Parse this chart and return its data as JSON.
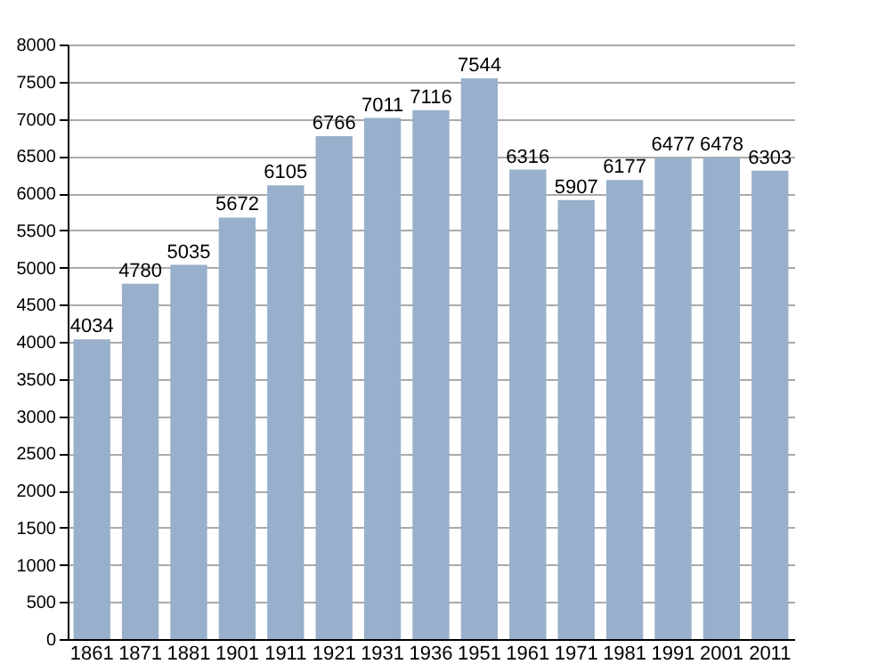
{
  "chart_data": {
    "type": "bar",
    "categories": [
      "1861",
      "1871",
      "1881",
      "1901",
      "1911",
      "1921",
      "1931",
      "1936",
      "1951",
      "1961",
      "1971",
      "1981",
      "1991",
      "2001",
      "2011"
    ],
    "values": [
      4034,
      4780,
      5035,
      5672,
      6105,
      6766,
      7011,
      7116,
      7544,
      6316,
      5907,
      6177,
      6477,
      6478,
      6303
    ],
    "color": "#98b0cb",
    "ylim": [
      0,
      8000
    ],
    "yticks": [
      0,
      500,
      1000,
      1500,
      2000,
      2500,
      3000,
      3500,
      4000,
      4500,
      5000,
      5500,
      6000,
      6500,
      7000,
      7500,
      8000
    ],
    "grid": "y",
    "data_labels": true
  }
}
